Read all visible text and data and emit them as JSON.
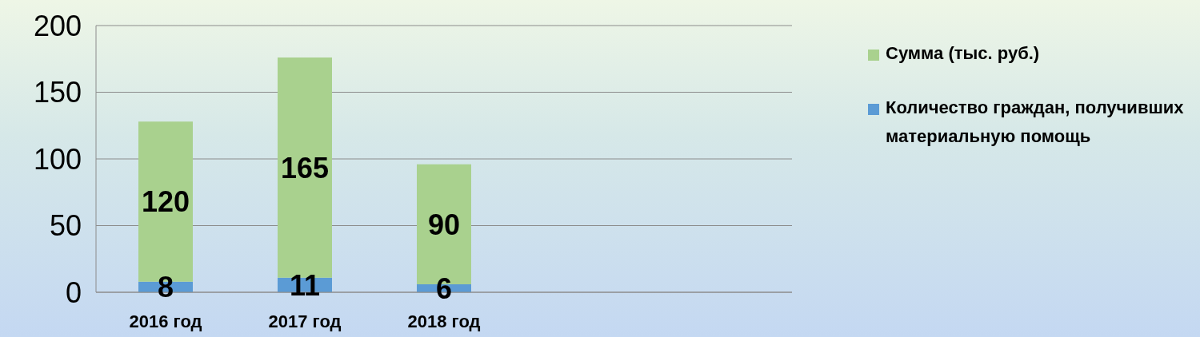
{
  "chart_data": {
    "type": "bar",
    "stacked": true,
    "categories": [
      "2016 год",
      "2017 год",
      "2018 год",
      null,
      null
    ],
    "series": [
      {
        "name": "Количество граждан, получивших материальную помощь",
        "color": "#5b9bd5",
        "values": [
          8,
          11,
          6,
          null,
          null
        ]
      },
      {
        "name": "Сумма (тыс. руб.)",
        "color": "#a9d18e",
        "values": [
          120,
          165,
          90,
          null,
          null
        ]
      }
    ],
    "ylim": [
      0,
      200
    ],
    "yticks": [
      0,
      50,
      100,
      150,
      200
    ],
    "grid": "y",
    "legend": "right",
    "data_labels": true
  }
}
